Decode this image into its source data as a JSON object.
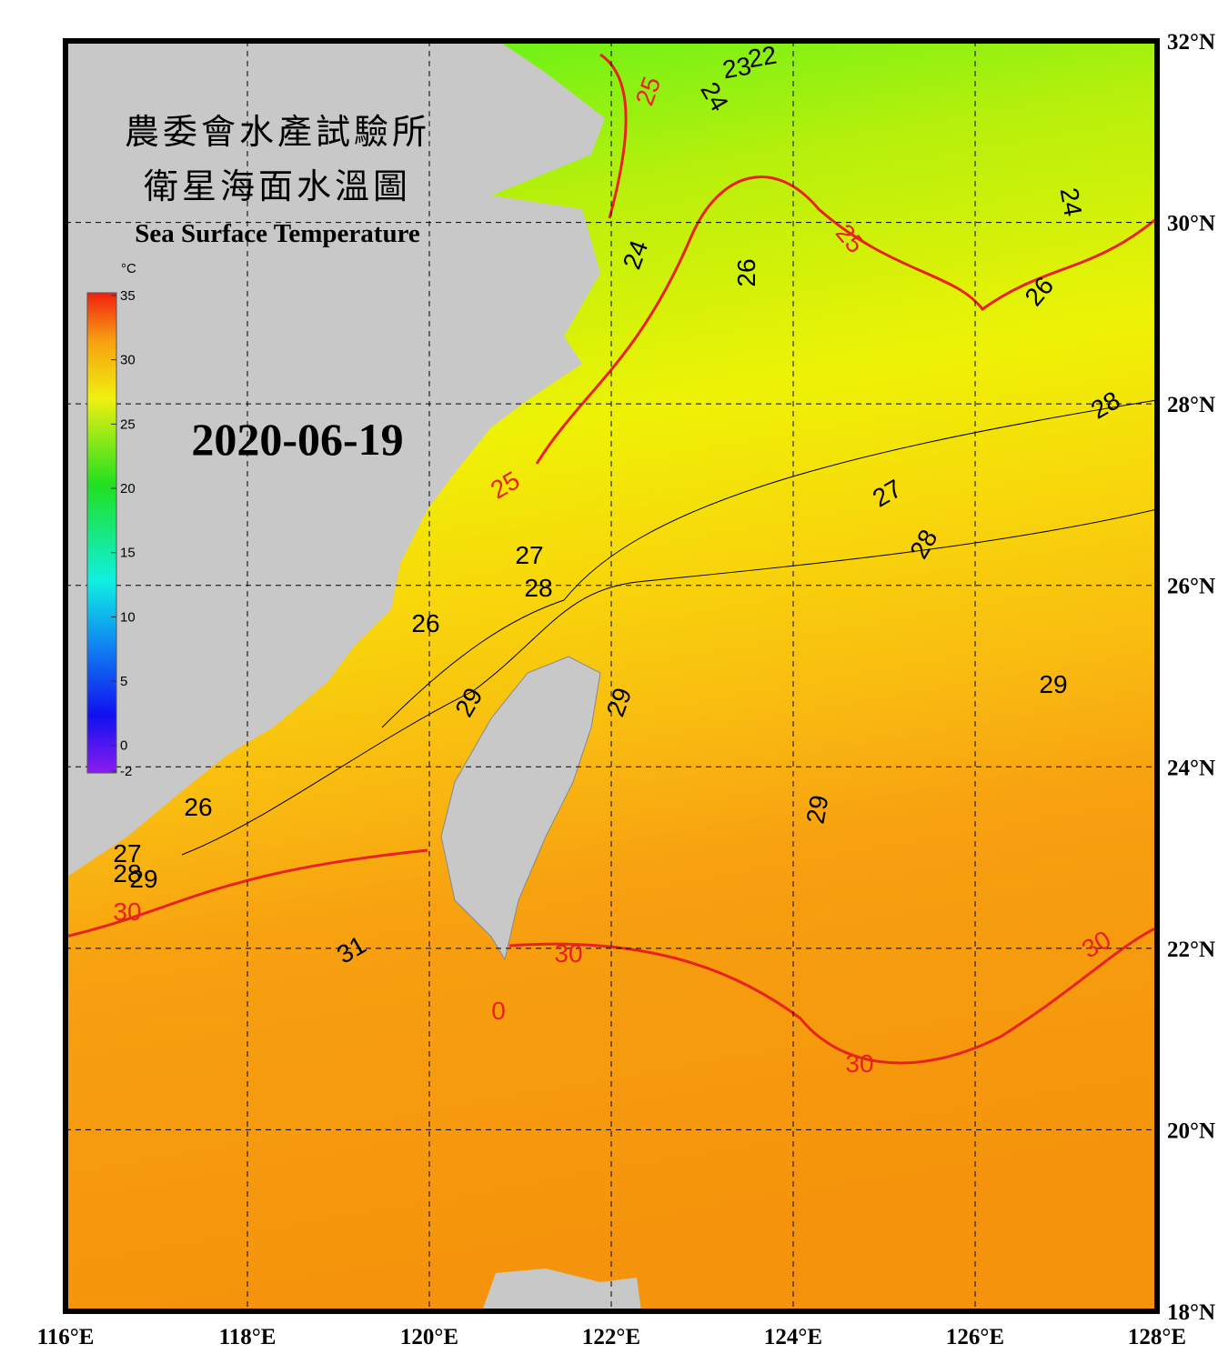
{
  "header": {
    "title_zh_1": "農委會水產試驗所",
    "title_zh_2": "衛星海面水溫圖",
    "title_en": "Sea Surface Temperature",
    "date": "2020-06-19"
  },
  "colorbar": {
    "unit": "°C",
    "range": [
      -2,
      35
    ],
    "ticks": [
      35,
      30,
      25,
      20,
      15,
      10,
      5,
      0,
      -2
    ]
  },
  "map": {
    "lonlim": [
      116,
      128
    ],
    "latlim": [
      18,
      32
    ],
    "lon_ticks": [
      {
        "value": 116,
        "label": "116°E"
      },
      {
        "value": 118,
        "label": "118°E"
      },
      {
        "value": 120,
        "label": "120°E"
      },
      {
        "value": 122,
        "label": "122°E"
      },
      {
        "value": 124,
        "label": "124°E"
      },
      {
        "value": 126,
        "label": "126°E"
      },
      {
        "value": 128,
        "label": "128°E"
      }
    ],
    "lat_ticks": [
      {
        "value": 32,
        "label": "32°N"
      },
      {
        "value": 30,
        "label": "30°N"
      },
      {
        "value": 28,
        "label": "28°N"
      },
      {
        "value": 26,
        "label": "26°N"
      },
      {
        "value": 24,
        "label": "24°N"
      },
      {
        "value": 22,
        "label": "22°N"
      },
      {
        "value": 20,
        "label": "20°N"
      },
      {
        "value": 18,
        "label": "18°N"
      }
    ],
    "grid": true,
    "contour_labels": [
      25,
      22,
      23,
      24,
      24,
      26,
      25,
      24,
      26,
      28,
      27,
      28,
      25,
      27,
      28,
      26,
      29,
      29,
      29,
      29,
      26,
      27,
      28,
      29,
      30,
      31,
      30,
      0,
      30,
      30
    ],
    "major_color": "#e8231e"
  }
}
